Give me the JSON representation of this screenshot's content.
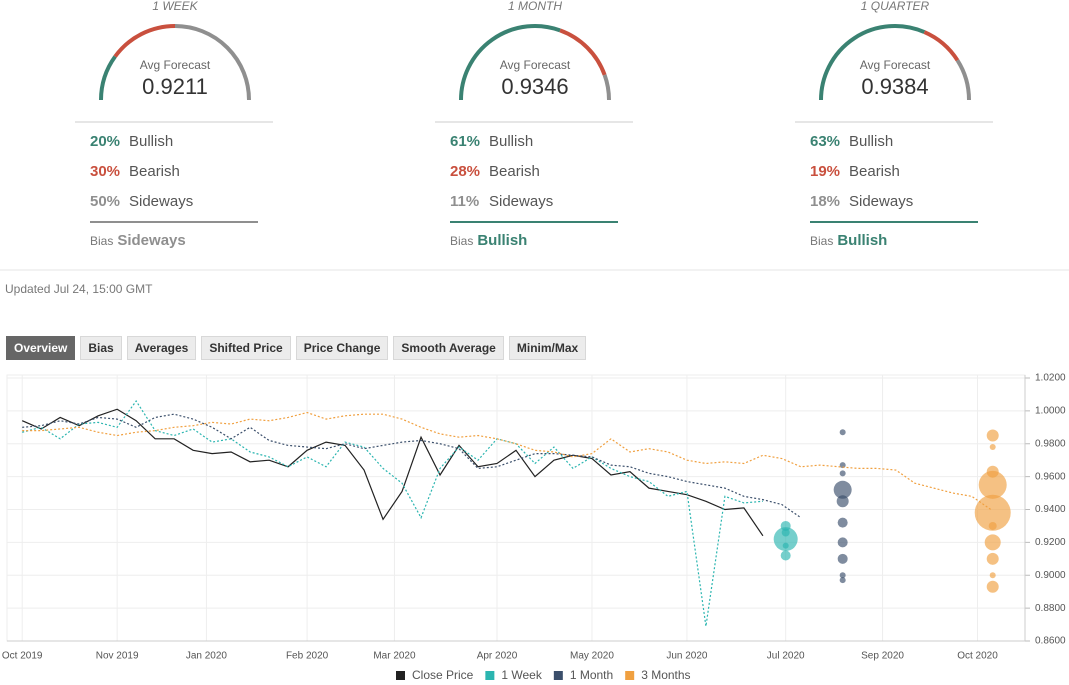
{
  "forecasts": [
    {
      "period": "1 WEEK",
      "avg_label": "Avg Forecast",
      "avg_value": "0.9211",
      "rows": [
        {
          "value": 20,
          "value_label": "20%",
          "label": "Bullish"
        },
        {
          "value": 30,
          "value_label": "30%",
          "label": "Bearish"
        },
        {
          "value": 50,
          "value_label": "50%",
          "label": "Sideways"
        }
      ],
      "bias_label": "Bias",
      "bias": "Sideways"
    },
    {
      "period": "1 MONTH",
      "avg_label": "Avg Forecast",
      "avg_value": "0.9346",
      "rows": [
        {
          "value": 61,
          "value_label": "61%",
          "label": "Bullish"
        },
        {
          "value": 28,
          "value_label": "28%",
          "label": "Bearish"
        },
        {
          "value": 11,
          "value_label": "11%",
          "label": "Sideways"
        }
      ],
      "bias_label": "Bias",
      "bias": "Bullish"
    },
    {
      "period": "1 QUARTER",
      "avg_label": "Avg Forecast",
      "avg_value": "0.9384",
      "rows": [
        {
          "value": 63,
          "value_label": "63%",
          "label": "Bullish"
        },
        {
          "value": 19,
          "value_label": "19%",
          "label": "Bearish"
        },
        {
          "value": 18,
          "value_label": "18%",
          "label": "Sideways"
        }
      ],
      "bias_label": "Bias",
      "bias": "Bullish"
    }
  ],
  "row_colors": [
    "#3a8272",
    "#c9503e",
    "#8f8f8f"
  ],
  "updated": "Updated Jul 24, 15:00 GMT",
  "tabs": [
    "Overview",
    "Bias",
    "Averages",
    "Shifted Price",
    "Price Change",
    "Smooth Average",
    "Minim/Max"
  ],
  "active_tab": 0,
  "chart_data": {
    "type": "line",
    "x": [
      0,
      1,
      2,
      3,
      4,
      5,
      6,
      7,
      8,
      9,
      10,
      11,
      12,
      13,
      14,
      15,
      16,
      17,
      18,
      19,
      20,
      21,
      22,
      23,
      24,
      25,
      26,
      27,
      28,
      29,
      30,
      31,
      32,
      33,
      34,
      35,
      36,
      37,
      38,
      39,
      40,
      41,
      42,
      43,
      44,
      45,
      46,
      47,
      48,
      49,
      50,
      51
    ],
    "xlim": [
      -0.8,
      52.8
    ],
    "xticks": [
      {
        "value": 0,
        "label": "Oct 2019"
      },
      {
        "value": 5,
        "label": "Nov 2019"
      },
      {
        "value": 9.7,
        "label": "Jan 2020"
      },
      {
        "value": 15,
        "label": "Feb 2020"
      },
      {
        "value": 19.6,
        "label": "Mar 2020"
      },
      {
        "value": 25,
        "label": "Apr 2020"
      },
      {
        "value": 30,
        "label": "May 2020"
      },
      {
        "value": 35,
        "label": "Jun 2020"
      },
      {
        "value": 40.2,
        "label": "Jul 2020"
      },
      {
        "value": 45.3,
        "label": "Sep 2020"
      },
      {
        "value": 50.3,
        "label": "Oct 2020"
      }
    ],
    "ylim": [
      0.86,
      1.02
    ],
    "yticks": [
      {
        "value": 1.02,
        "label": "1.0200"
      },
      {
        "value": 1.0,
        "label": "1.0000"
      },
      {
        "value": 0.98,
        "label": "0.9800"
      },
      {
        "value": 0.96,
        "label": "0.9600"
      },
      {
        "value": 0.94,
        "label": "0.9400"
      },
      {
        "value": 0.92,
        "label": "0.9200"
      },
      {
        "value": 0.9,
        "label": "0.9000"
      },
      {
        "value": 0.88,
        "label": "0.8800"
      },
      {
        "value": 0.86,
        "label": "0.8600"
      }
    ],
    "grid": true,
    "series": [
      {
        "name": "Close Price",
        "color": "#222222",
        "dashed": false,
        "values": [
          0.994,
          0.989,
          0.996,
          0.991,
          0.997,
          1.001,
          0.994,
          0.983,
          0.983,
          0.976,
          0.974,
          0.975,
          0.969,
          0.97,
          0.966,
          0.976,
          0.981,
          0.979,
          0.964,
          0.934,
          0.951,
          0.984,
          0.961,
          0.979,
          0.966,
          0.968,
          0.976,
          0.96,
          0.97,
          0.973,
          0.971,
          0.961,
          0.963,
          0.953,
          0.951,
          0.949,
          0.945,
          0.94,
          0.941,
          0.924,
          null,
          null,
          null,
          null,
          null,
          null,
          null,
          null,
          null,
          null,
          null,
          null
        ]
      },
      {
        "name": "1 Week",
        "color": "#2bb5b0",
        "dashed": true,
        "values": [
          0.987,
          0.99,
          0.983,
          0.992,
          0.993,
          0.99,
          1.006,
          0.988,
          0.985,
          0.989,
          0.981,
          0.983,
          0.975,
          0.972,
          0.966,
          0.972,
          0.966,
          0.981,
          0.978,
          0.965,
          0.956,
          0.935,
          0.965,
          0.978,
          0.97,
          0.983,
          0.98,
          0.968,
          0.978,
          0.965,
          0.972,
          0.965,
          0.96,
          0.957,
          0.948,
          0.951,
          0.869,
          0.948,
          0.944,
          0.945,
          null,
          null,
          null,
          null,
          null,
          null,
          null,
          null,
          null,
          null,
          null,
          null
        ],
        "bubbles": {
          "x": 40.2,
          "values": [
            0.922,
            0.93,
            0.926,
            0.918,
            0.912
          ],
          "sizes": [
            12,
            5,
            4,
            3,
            5
          ]
        }
      },
      {
        "name": "1 Month",
        "color": "#3b4f6b",
        "dashed": true,
        "values": [
          0.99,
          0.991,
          0.994,
          0.992,
          0.996,
          0.995,
          0.99,
          0.996,
          0.998,
          0.995,
          0.99,
          0.983,
          0.99,
          0.982,
          0.979,
          0.978,
          0.977,
          0.98,
          0.977,
          0.979,
          0.981,
          0.982,
          0.98,
          0.977,
          0.965,
          0.966,
          0.97,
          0.974,
          0.974,
          0.973,
          0.972,
          0.967,
          0.966,
          0.962,
          0.96,
          0.957,
          0.955,
          0.953,
          0.948,
          0.946,
          0.943,
          0.935,
          null,
          null,
          null,
          null,
          null,
          null,
          null,
          null,
          null,
          null
        ],
        "bubbles": {
          "x": 43.2,
          "values": [
            0.987,
            0.967,
            0.962,
            0.952,
            0.945,
            0.932,
            0.92,
            0.91,
            0.9,
            0.897
          ],
          "sizes": [
            3,
            3,
            3,
            9,
            6,
            5,
            5,
            5,
            3,
            3
          ]
        }
      },
      {
        "name": "3 Months",
        "color": "#f0a040",
        "dashed": true,
        "values": [
          0.988,
          0.988,
          0.989,
          0.99,
          0.987,
          0.985,
          0.987,
          0.988,
          0.99,
          0.991,
          0.993,
          0.992,
          0.995,
          0.994,
          0.996,
          0.999,
          0.995,
          0.997,
          0.998,
          0.998,
          0.995,
          0.99,
          0.986,
          0.984,
          0.985,
          0.983,
          0.98,
          0.976,
          0.975,
          0.972,
          0.974,
          0.983,
          0.975,
          0.977,
          0.975,
          0.97,
          0.968,
          0.969,
          0.968,
          0.973,
          0.971,
          0.966,
          0.967,
          0.966,
          0.965,
          0.965,
          0.964,
          0.956,
          0.953,
          0.95,
          0.948,
          0.94
        ],
        "bubbles": {
          "x": 51.1,
          "values": [
            0.985,
            0.978,
            0.963,
            0.955,
            0.938,
            0.93,
            0.92,
            0.91,
            0.9,
            0.893
          ],
          "sizes": [
            6,
            3,
            6,
            14,
            18,
            4,
            8,
            6,
            3,
            6
          ]
        }
      }
    ]
  }
}
